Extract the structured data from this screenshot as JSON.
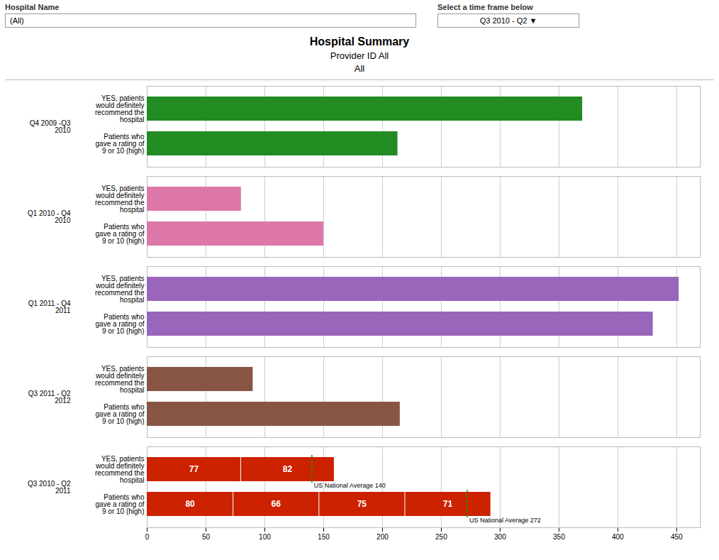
{
  "chart_data": {
    "type": "bar",
    "orientation": "horizontal",
    "title": "Hospital Summary",
    "subtitle": [
      "Provider ID All",
      "All"
    ],
    "annotations": [
      "Hospital Name",
      "(All)",
      "Select a time frame below",
      "Q3 2010 - Q2 ▼"
    ],
    "categories": [
      "Patients who\ngave a rating of\n9 or 10 (high)",
      "YES, patients\nwould definitely\nrecommend the\nhospital"
    ],
    "series": [
      {
        "name": "Q4 2009 -Q3\n2010",
        "color": "#228B22",
        "values": [
          213,
          370
        ]
      },
      {
        "name": "Q1 2010 - Q4\n2010",
        "color": "#DD77AA",
        "values": [
          150,
          80
        ]
      },
      {
        "name": "Q1 2011 - Q4\n2011",
        "color": "#9966BB",
        "values": [
          430,
          452
        ]
      },
      {
        "name": "Q3 2011 - Q2\n2012",
        "color": "#885544",
        "values": [
          215,
          90
        ]
      },
      {
        "name": "Q3 2010 - Q2\n2011",
        "color": "#CC2200",
        "values": [
          292,
          159
        ],
        "segments": [
          [
            80,
            66,
            75,
            71
          ],
          [
            77,
            82
          ]
        ],
        "reference": [
          {
            "value": 272,
            "label": "US National Average 272",
            "color": "#00AA00"
          },
          {
            "value": 140,
            "label": "US National Average 140",
            "color": "#00AA00"
          }
        ]
      }
    ],
    "xlim": [
      0,
      470
    ],
    "xticks": [
      0,
      50,
      100,
      150,
      200,
      250,
      300,
      350,
      400,
      450
    ],
    "grid": true
  }
}
